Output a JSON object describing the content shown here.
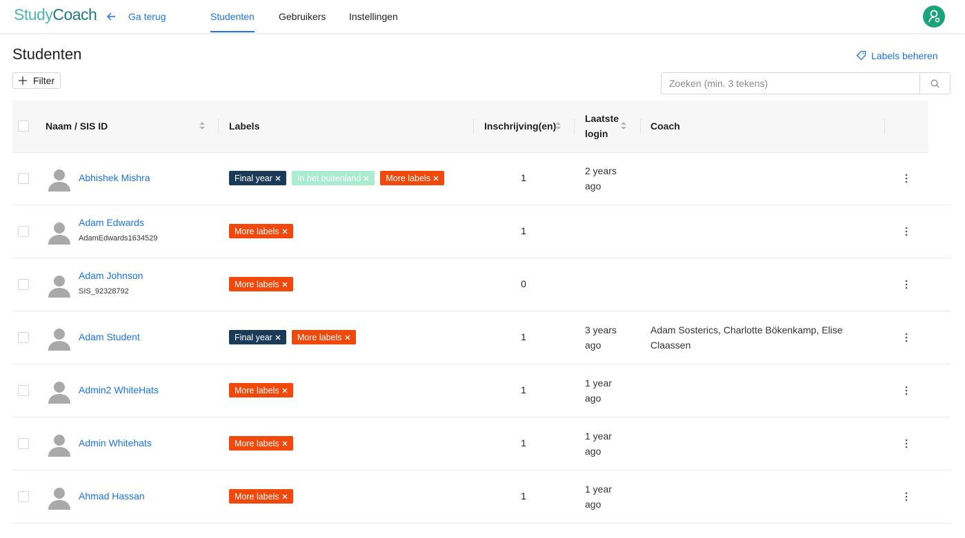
{
  "header": {
    "logo": [
      "Study",
      "Coach"
    ],
    "back": "Ga terug",
    "tabs": [
      "Studenten",
      "Gebruikers",
      "Instellingen"
    ],
    "active_tab": 0
  },
  "page": {
    "title": "Studenten",
    "labels_link": "Labels beheren",
    "filter": "Filter",
    "search_placeholder": "Zoeken (min. 3 tekens)"
  },
  "label_colors": {
    "Final year": {
      "bg": "#1b3a57",
      "fg": "#ffffff"
    },
    "In het buitenland": {
      "bg": "#a9ecd2",
      "fg": "#ffffff"
    },
    "More labels": {
      "bg": "#f0490b",
      "fg": "#ffffff"
    }
  },
  "table": {
    "columns": [
      {
        "label": "Naam / SIS ID",
        "sortable": true
      },
      {
        "label": "Labels",
        "sortable": false
      },
      {
        "label": "Inschrijving(en)",
        "sortable": true
      },
      {
        "label": "Laatste login",
        "sortable": true
      },
      {
        "label": "Coach",
        "sortable": false
      }
    ],
    "rows": [
      {
        "name": "Abhishek Mishra",
        "labels": [
          "Final year",
          "In het buitenland",
          "More labels"
        ],
        "enrollments": 1,
        "last_login": "2 years ago"
      },
      {
        "name": "Adam Edwards",
        "sis_id": "AdamEdwards1634529",
        "labels": [
          "More labels"
        ],
        "enrollments": 1
      },
      {
        "name": "Adam Johnson",
        "sis_id": "SIS_92328792",
        "labels": [
          "More labels"
        ],
        "enrollments": 0
      },
      {
        "name": "Adam Student",
        "labels": [
          "Final year",
          "More labels"
        ],
        "enrollments": 1,
        "last_login": "3 years ago",
        "coach": "Adam Sosterics, Charlotte Bökenkamp, Elise Claassen"
      },
      {
        "name": "Admin2 WhiteHats",
        "labels": [
          "More labels"
        ],
        "enrollments": 1,
        "last_login": "1 year ago"
      },
      {
        "name": "Admin Whitehats",
        "labels": [
          "More labels"
        ],
        "enrollments": 1,
        "last_login": "1 year ago"
      },
      {
        "name": "Ahmad Hassan",
        "labels": [
          "More labels"
        ],
        "enrollments": 1,
        "last_login": "1 year ago"
      }
    ]
  }
}
